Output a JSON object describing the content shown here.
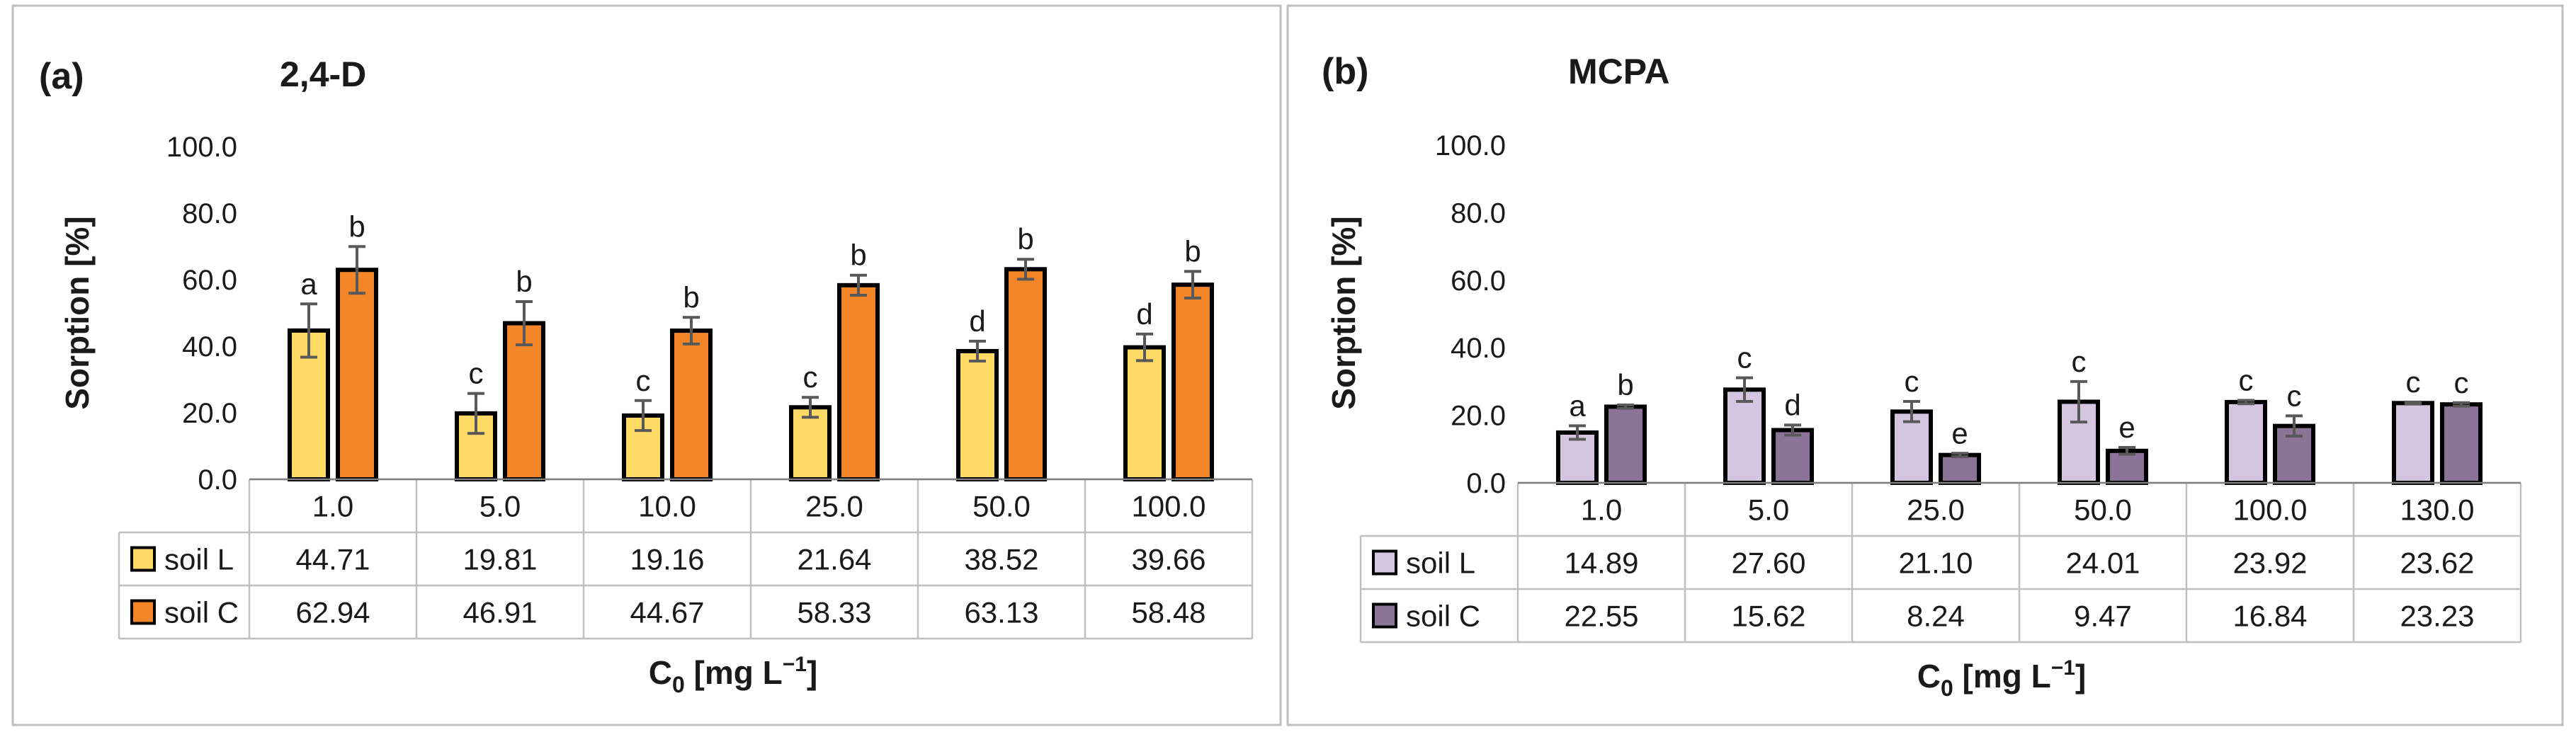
{
  "colors": {
    "soilL_a": "#FFD966",
    "soilC_a": "#F4862A",
    "soilL_b": "#D5C5E0",
    "soilC_b": "#8C7498"
  },
  "chart_data": [
    {
      "type": "bar",
      "panel_label": "(a)",
      "title": "2,4-D",
      "xlabel": "C",
      "xlabel_sub": "0",
      "xlabel_unit": "[mg L",
      "xlabel_sup": "−1",
      "xlabel_close": "]",
      "ylabel": "Sorption [%]",
      "ylim": [
        0,
        100
      ],
      "yticks": [
        "0.0",
        "20.0",
        "40.0",
        "60.0",
        "80.0",
        "100.0"
      ],
      "categories": [
        "1.0",
        "5.0",
        "10.0",
        "25.0",
        "50.0",
        "100.0"
      ],
      "series": [
        {
          "name": "soil L",
          "values": [
            44.71,
            19.81,
            19.16,
            21.64,
            38.52,
            39.66
          ],
          "labels": [
            "44.71",
            "19.81",
            "19.16",
            "21.64",
            "38.52",
            "39.66"
          ],
          "errors": [
            8,
            6,
            4.5,
            3,
            3,
            4
          ],
          "letters": [
            "a",
            "c",
            "c",
            "c",
            "d",
            "d"
          ]
        },
        {
          "name": "soil C",
          "values": [
            62.94,
            46.91,
            44.67,
            58.33,
            63.13,
            58.48
          ],
          "labels": [
            "62.94",
            "46.91",
            "44.67",
            "58.33",
            "63.13",
            "58.48"
          ],
          "errors": [
            7,
            6.5,
            4,
            3,
            3,
            4
          ],
          "letters": [
            "b",
            "b",
            "b",
            "b",
            "b",
            "b"
          ]
        }
      ]
    },
    {
      "type": "bar",
      "panel_label": "(b)",
      "title": "MCPA",
      "xlabel": "C",
      "xlabel_sub": "0",
      "xlabel_unit": "[mg L",
      "xlabel_sup": "−1",
      "xlabel_close": "]",
      "ylabel": "Sorption  [%]",
      "ylim": [
        0,
        100
      ],
      "yticks": [
        "0.0",
        "20.0",
        "40.0",
        "60.0",
        "80.0",
        "100.0"
      ],
      "categories": [
        "1.0",
        "5.0",
        "25.0",
        "50.0",
        "100.0",
        "130.0"
      ],
      "series": [
        {
          "name": "soil L",
          "values": [
            14.89,
            27.6,
            21.1,
            24.01,
            23.92,
            23.62
          ],
          "labels": [
            "14.89",
            "27.60",
            "21.10",
            "24.01",
            "23.92",
            "23.62"
          ],
          "errors": [
            2,
            3.5,
            3,
            6,
            0.5,
            0.3
          ],
          "letters": [
            "a",
            "c",
            "c",
            "c",
            "c",
            "c"
          ]
        },
        {
          "name": "soil C",
          "values": [
            22.55,
            15.62,
            8.24,
            9.47,
            16.84,
            23.23
          ],
          "labels": [
            "22.55",
            "15.62",
            "8.24",
            "9.47",
            "16.84",
            "23.23"
          ],
          "errors": [
            0.5,
            1.5,
            0.5,
            1,
            3,
            0.5
          ],
          "letters": [
            "b",
            "d",
            "e",
            "e",
            "c",
            "c"
          ]
        }
      ]
    }
  ]
}
